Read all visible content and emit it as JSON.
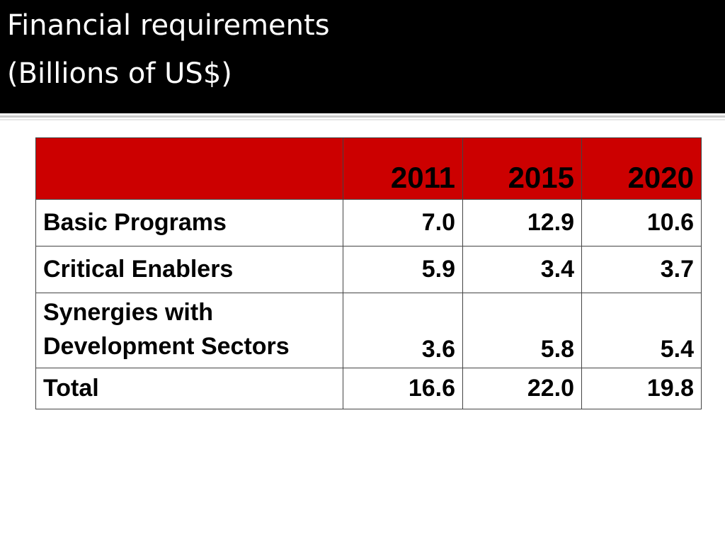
{
  "title": {
    "line1": "Financial requirements",
    "line2": "(Billions of US$)"
  },
  "table": {
    "headers": [
      "",
      "2011",
      "2015",
      "2020"
    ],
    "rows": [
      {
        "label": "Basic Programs",
        "values": [
          "7.0",
          "12.9",
          "10.6"
        ]
      },
      {
        "label": "Critical Enablers",
        "values": [
          "5.9",
          "3.4",
          "3.7"
        ]
      },
      {
        "label_line1": "Synergies with",
        "label_line2": "Development Sectors",
        "values": [
          "3.6",
          "5.8",
          "5.4"
        ]
      },
      {
        "label": "Total",
        "values": [
          "16.6",
          "22.0",
          "19.8"
        ]
      }
    ]
  },
  "colors": {
    "title_band": "#000000",
    "title_text": "#ffffff",
    "header_fill": "#cc0000"
  }
}
